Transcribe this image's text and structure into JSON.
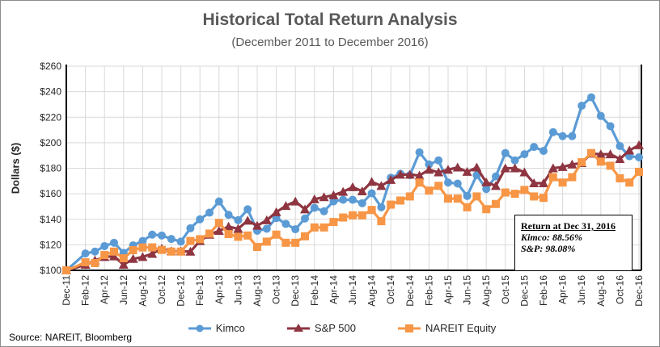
{
  "chart_data": {
    "type": "line",
    "title": "Historical Total Return Analysis",
    "subtitle": "(December 2011 to December 2016)",
    "xlabel": "",
    "ylabel": "Dollars ($)",
    "ylim": [
      100,
      260
    ],
    "ytick_step": 20,
    "ytick_labels": [
      "$100",
      "$120",
      "$140",
      "$160",
      "$180",
      "$200",
      "$220",
      "$240",
      "$260"
    ],
    "grid": true,
    "legend_position": "bottom",
    "categories": [
      "Dec-11",
      "Jan-12",
      "Feb-12",
      "Mar-12",
      "Apr-12",
      "May-12",
      "Jun-12",
      "Jul-12",
      "Aug-12",
      "Sep-12",
      "Oct-12",
      "Nov-12",
      "Dec-12",
      "Jan-13",
      "Feb-13",
      "Mar-13",
      "Apr-13",
      "May-13",
      "Jun-13",
      "Jul-13",
      "Aug-13",
      "Sep-13",
      "Oct-13",
      "Nov-13",
      "Dec-13",
      "Jan-14",
      "Feb-14",
      "Mar-14",
      "Apr-14",
      "May-14",
      "Jun-14",
      "Jul-14",
      "Aug-14",
      "Sep-14",
      "Oct-14",
      "Nov-14",
      "Dec-14",
      "Jan-15",
      "Feb-15",
      "Mar-15",
      "Apr-15",
      "May-15",
      "Jun-15",
      "Jul-15",
      "Aug-15",
      "Sep-15",
      "Oct-15",
      "Nov-15",
      "Dec-15",
      "Jan-16",
      "Feb-16",
      "Mar-16",
      "Apr-16",
      "May-16",
      "Jun-16",
      "Jul-16",
      "Aug-16",
      "Sep-16",
      "Oct-16",
      "Nov-16",
      "Dec-16"
    ],
    "xtick_every": 2,
    "series": [
      {
        "name": "Kimco",
        "color": "#5B9BD5",
        "marker": "circle",
        "values": [
          100,
          106.5,
          113.2,
          114.7,
          119,
          121.6,
          113.7,
          119.6,
          123,
          128,
          127.3,
          124.6,
          122.5,
          133,
          140,
          145.2,
          154,
          143.5,
          139.3,
          147.8,
          131,
          132.6,
          141,
          136.4,
          132.2,
          140.6,
          149,
          146.3,
          154,
          155.3,
          155.3,
          152.6,
          160.4,
          149.4,
          172.6,
          175.7,
          174.6,
          192.5,
          183,
          186.2,
          168.8,
          168,
          158.3,
          174.6,
          163.7,
          173.6,
          191.9,
          186.2,
          191,
          196.7,
          193.6,
          208.3,
          205.2,
          205.2,
          229,
          235.6,
          221,
          213,
          197.4,
          189.4,
          188.56
        ]
      },
      {
        "name": "S&P 500",
        "color": "#8E3541",
        "marker": "triangle",
        "values": [
          100,
          102,
          104.4,
          107.8,
          110.5,
          111,
          104.4,
          109,
          110.5,
          113,
          117,
          115,
          115,
          114.7,
          123,
          128,
          131,
          134.3,
          132.6,
          139,
          135,
          139.3,
          145.6,
          150.5,
          154,
          147.8,
          155.7,
          157.4,
          158.9,
          161.6,
          165.2,
          162,
          169.4,
          166.2,
          170.9,
          175,
          175,
          174.3,
          178.9,
          176.8,
          178.9,
          180.6,
          177.2,
          180.6,
          169,
          166.2,
          180,
          180,
          176.8,
          168.3,
          168.3,
          180,
          181,
          183,
          184.1,
          191.5,
          191,
          191,
          187.3,
          194,
          198.08
        ]
      },
      {
        "name": "NAREIT Equity",
        "color": "#F79646",
        "marker": "square",
        "values": [
          100,
          103,
          106.3,
          105.7,
          112,
          114.7,
          109.5,
          115.8,
          117.9,
          118,
          116,
          114.7,
          114.7,
          123,
          124.4,
          128.8,
          137.2,
          128.4,
          126.3,
          127.3,
          118.3,
          122.5,
          128,
          121.6,
          121.6,
          126.7,
          133.6,
          133.6,
          137.9,
          141.4,
          143.1,
          143.1,
          147.3,
          138.5,
          151.5,
          154.7,
          157.9,
          168.8,
          162.5,
          166.2,
          156.2,
          156.2,
          149.4,
          157.9,
          147.9,
          152,
          161,
          160,
          163,
          157.9,
          156.8,
          173,
          168.8,
          173,
          184.7,
          191.9,
          185.2,
          182,
          172.1,
          168.8,
          177.2
        ]
      }
    ],
    "annotation": {
      "heading": "Return at Dec 31, 2016",
      "line1": "Kimco: 88.56%",
      "line2": "S&P: 98.08%"
    },
    "source": "Source: NAREIT, Bloomberg"
  }
}
